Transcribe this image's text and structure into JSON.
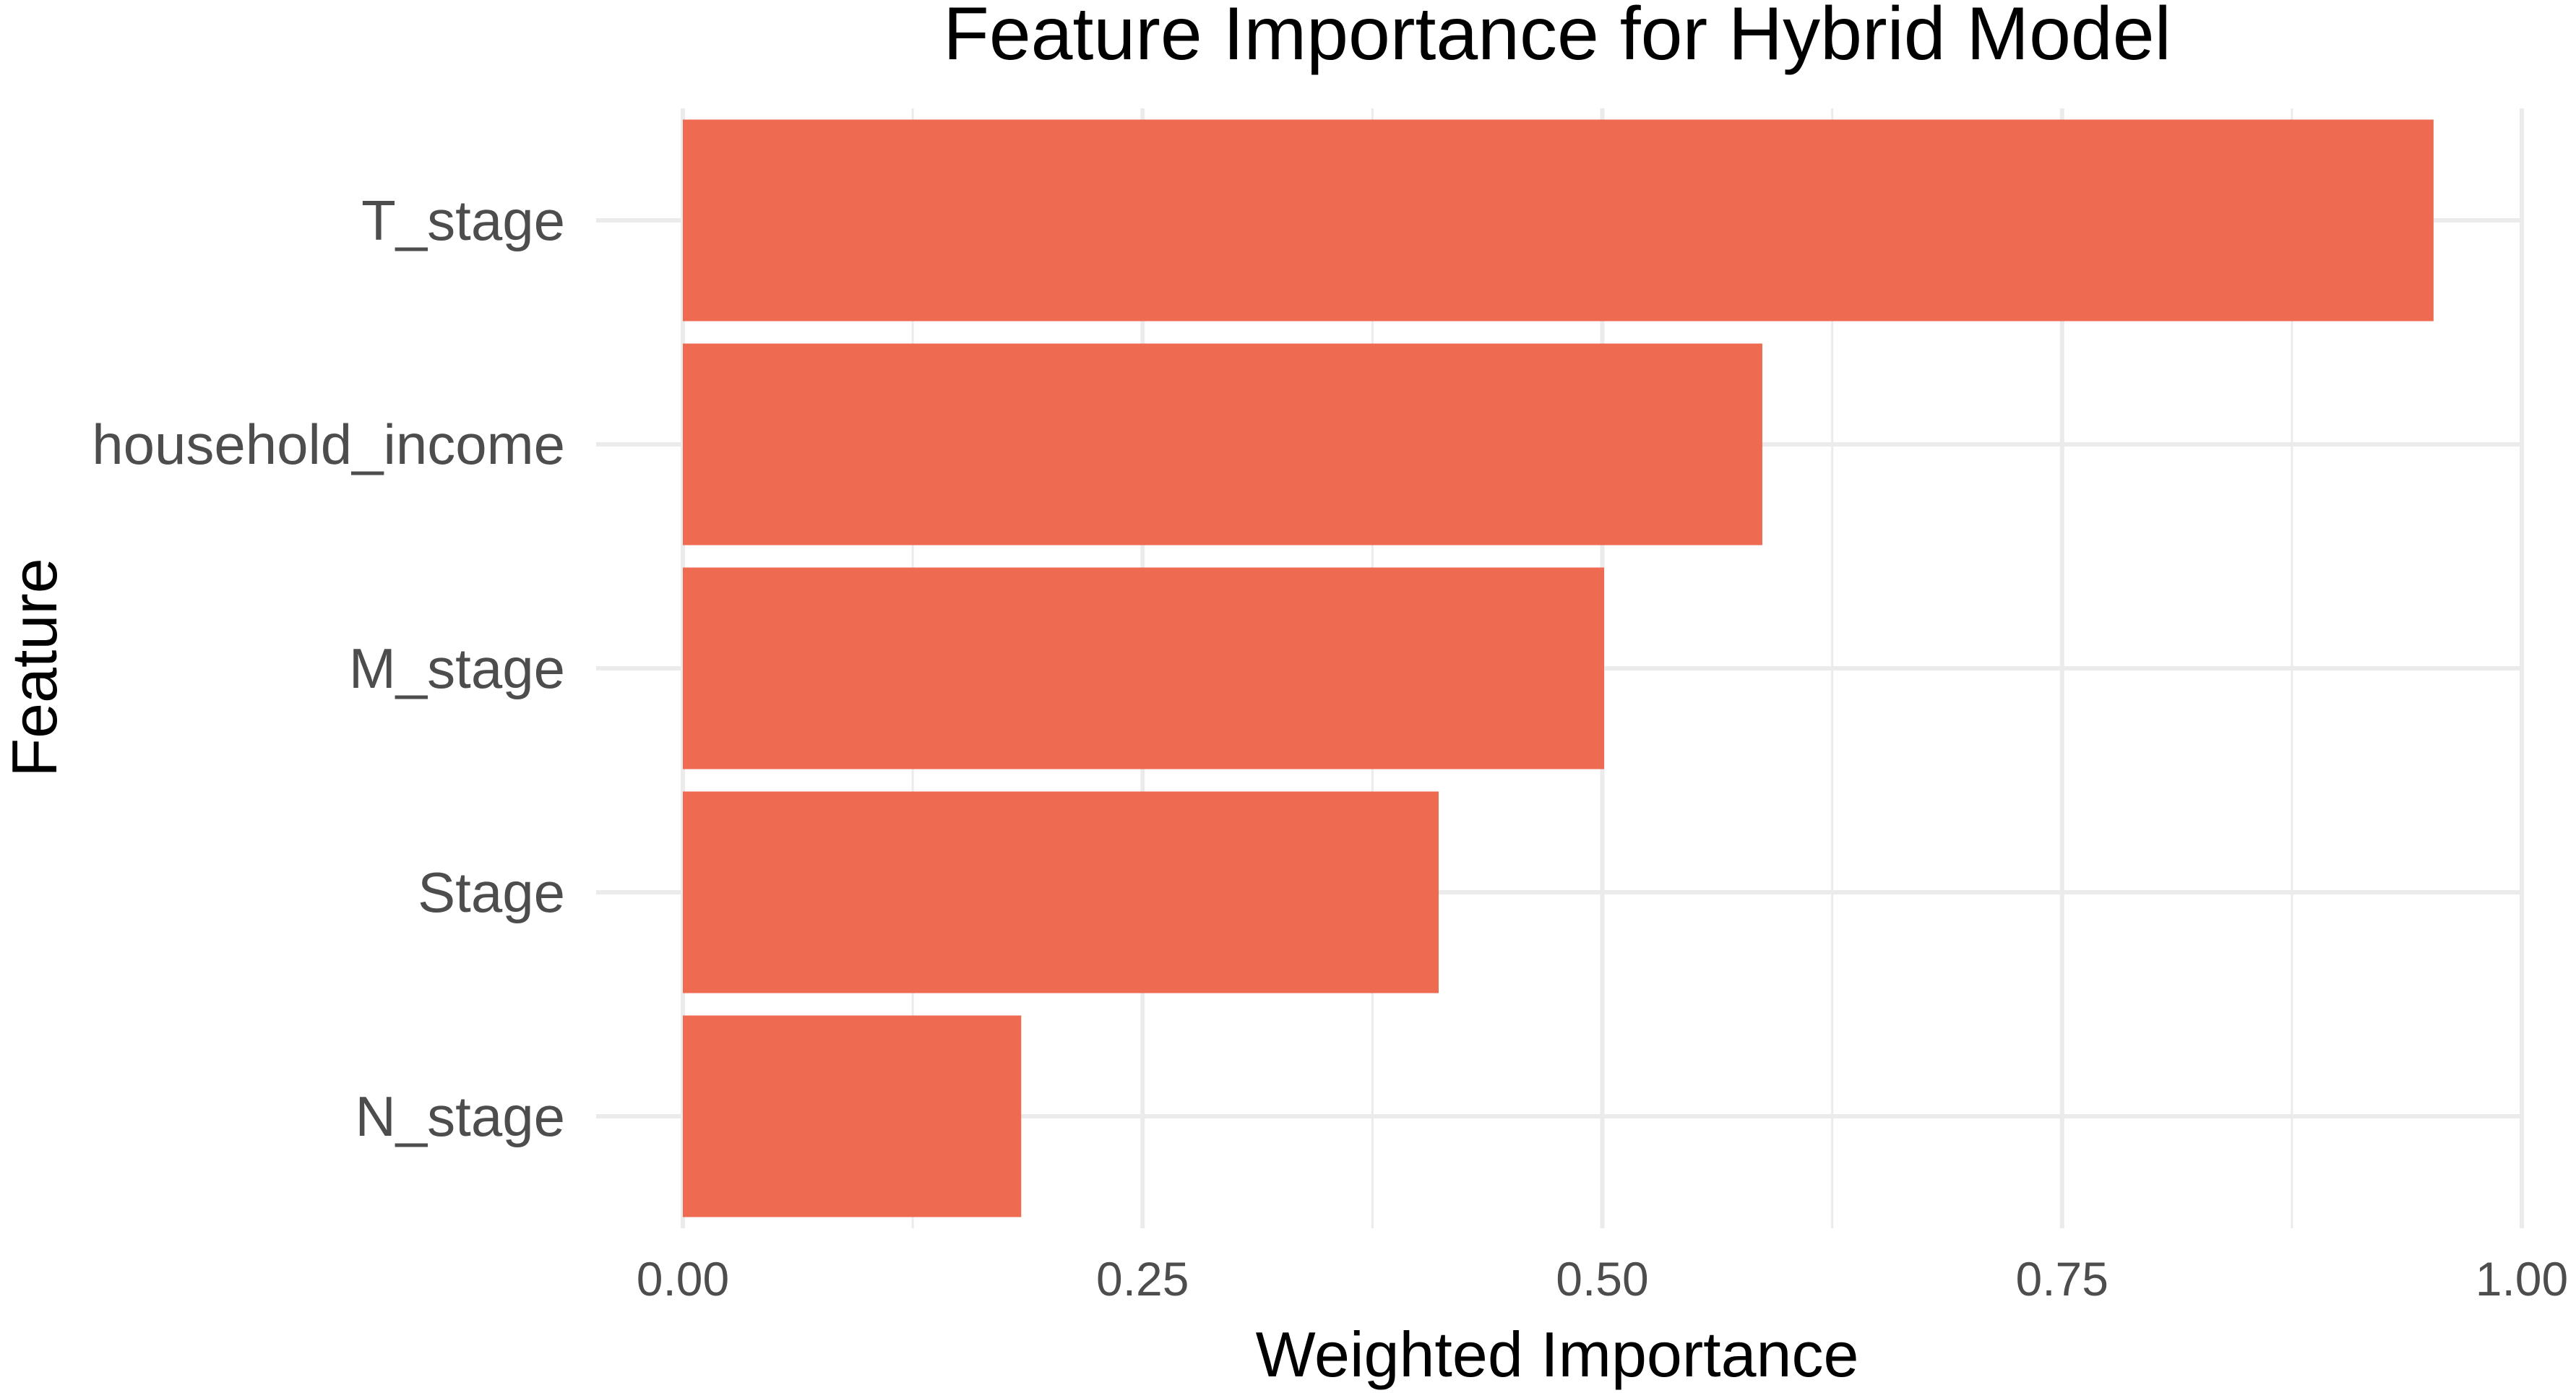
{
  "chart_data": {
    "type": "bar",
    "orientation": "horizontal",
    "title": "Feature Importance for Hybrid Model",
    "xlabel": "Weighted Importance",
    "ylabel": "Feature",
    "categories": [
      "T_stage",
      "household_income",
      "M_stage",
      "Stage",
      "N_stage"
    ],
    "values": [
      0.952,
      0.587,
      0.501,
      0.411,
      0.184
    ],
    "xlim": [
      0,
      1
    ],
    "x_ticks": [
      0,
      0.25,
      0.5,
      0.75,
      1
    ],
    "x_tick_labels": [
      "0.00",
      "0.25",
      "0.50",
      "0.75",
      "1.00"
    ],
    "bar_color": "#ee6a50",
    "grid": true,
    "legend": "none"
  }
}
